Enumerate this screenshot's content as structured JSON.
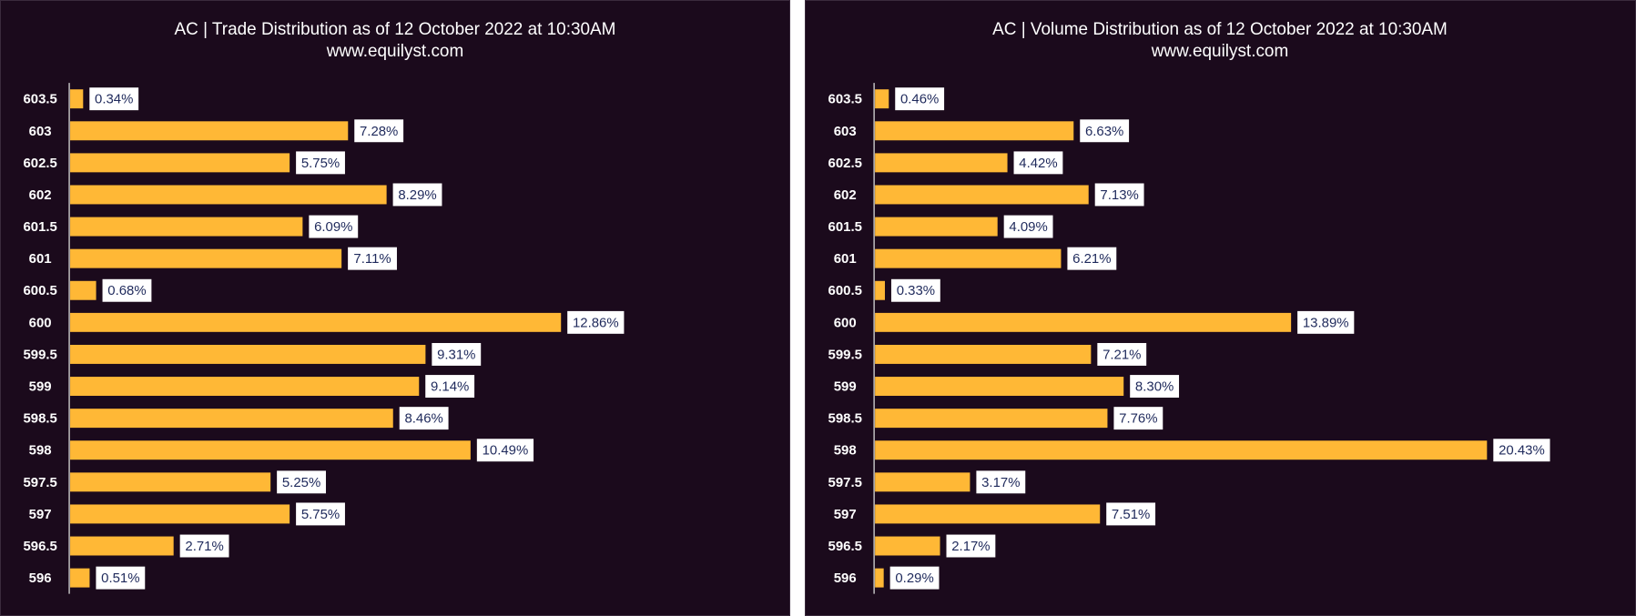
{
  "colors": {
    "background": "#1b0a1c",
    "bar": "#ffb836",
    "axis": "#bfbfbf",
    "label_box": "#ffffff",
    "label_text": "#1f2a5c",
    "text": "#ffffff"
  },
  "chart_data": [
    {
      "type": "bar",
      "orientation": "horizontal",
      "title": "AC | Trade Distribution as of 12 October 2022 at 10:30AM",
      "subtitle": "www.equilyst.com",
      "categories": [
        "603.5",
        "603",
        "602.5",
        "602",
        "601.5",
        "601",
        "600.5",
        "600",
        "599.5",
        "599",
        "598.5",
        "598",
        "597.5",
        "597",
        "596.5",
        "596"
      ],
      "values": [
        0.34,
        7.28,
        5.75,
        8.29,
        6.09,
        7.11,
        0.68,
        12.86,
        9.31,
        9.14,
        8.46,
        10.49,
        5.25,
        5.75,
        2.71,
        0.51
      ],
      "data_labels": [
        "0.34%",
        "7.28%",
        "5.75%",
        "8.29%",
        "6.09%",
        "7.11%",
        "0.68%",
        "12.86%",
        "9.31%",
        "9.14%",
        "8.46%",
        "10.49%",
        "5.25%",
        "5.75%",
        "2.71%",
        "0.51%"
      ],
      "xlim": [
        0,
        14
      ],
      "grid": false,
      "legend": "none"
    },
    {
      "type": "bar",
      "orientation": "horizontal",
      "title": "AC | Volume Distribution as of 12 October 2022 at 10:30AM",
      "subtitle": "www.equilyst.com",
      "categories": [
        "603.5",
        "603",
        "602.5",
        "602",
        "601.5",
        "601",
        "600.5",
        "600",
        "599.5",
        "599",
        "598.5",
        "598",
        "597.5",
        "597",
        "596.5",
        "596"
      ],
      "values": [
        0.46,
        6.63,
        4.42,
        7.13,
        4.09,
        6.21,
        0.33,
        13.89,
        7.21,
        8.3,
        7.76,
        20.43,
        3.17,
        7.51,
        2.17,
        0.29
      ],
      "data_labels": [
        "0.46%",
        "6.63%",
        "4.42%",
        "7.13%",
        "4.09%",
        "6.21%",
        "0.33%",
        "13.89%",
        "7.21%",
        "8.30%",
        "7.76%",
        "20.43%",
        "3.17%",
        "7.51%",
        "2.17%",
        "0.29%"
      ],
      "xlim": [
        0,
        23
      ],
      "grid": false,
      "legend": "none"
    }
  ]
}
